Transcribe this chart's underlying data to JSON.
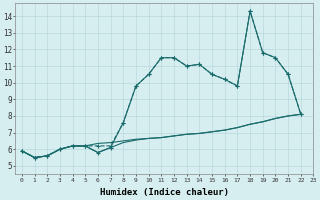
{
  "xlabel": "Humidex (Indice chaleur)",
  "xlim": [
    -0.5,
    23
  ],
  "ylim": [
    4.5,
    14.8
  ],
  "yticks": [
    5,
    6,
    7,
    8,
    9,
    10,
    11,
    12,
    13,
    14
  ],
  "xticks": [
    0,
    1,
    2,
    3,
    4,
    5,
    6,
    7,
    8,
    9,
    10,
    11,
    12,
    13,
    14,
    15,
    16,
    17,
    18,
    19,
    20,
    21,
    22,
    23
  ],
  "background_color": "#d6eef0",
  "grid_color": "#b8d8dc",
  "line_color": "#1a6b6b",
  "line1_dashed": {
    "x": [
      0,
      1,
      2,
      3,
      4,
      5,
      6,
      7,
      8,
      9,
      10,
      11,
      12,
      13,
      14,
      15,
      16,
      17,
      18,
      19,
      20,
      21,
      22
    ],
    "y": [
      5.9,
      5.5,
      5.6,
      6.0,
      6.2,
      6.2,
      6.2,
      6.2,
      7.6,
      9.8,
      10.5,
      11.5,
      11.5,
      11.0,
      11.1,
      10.5,
      10.2,
      9.8,
      14.3,
      11.8,
      11.5,
      10.5,
      8.1
    ]
  },
  "line2_solid_markers": {
    "x": [
      0,
      1,
      2,
      3,
      4,
      5,
      6,
      7,
      8,
      9,
      10,
      11,
      12,
      13,
      14,
      15,
      16,
      17,
      18,
      19,
      20,
      21,
      22
    ],
    "y": [
      5.9,
      5.5,
      5.6,
      6.0,
      6.2,
      6.2,
      5.8,
      6.1,
      7.6,
      9.8,
      10.5,
      11.5,
      11.5,
      11.0,
      11.1,
      10.5,
      10.2,
      9.8,
      14.3,
      11.8,
      11.5,
      10.5,
      8.1
    ]
  },
  "line3_diagonal": {
    "x": [
      0,
      1,
      2,
      3,
      4,
      5,
      6,
      7,
      8,
      9,
      10,
      11,
      12,
      13,
      14,
      15,
      16,
      17,
      18,
      19,
      20,
      21,
      22
    ],
    "y": [
      5.9,
      5.5,
      5.6,
      6.0,
      6.2,
      6.2,
      6.35,
      6.4,
      6.5,
      6.6,
      6.65,
      6.7,
      6.8,
      6.9,
      6.95,
      7.05,
      7.15,
      7.3,
      7.5,
      7.65,
      7.85,
      8.0,
      8.1
    ]
  },
  "line4_diagonal2": {
    "x": [
      0,
      1,
      2,
      3,
      4,
      5,
      6,
      7,
      8,
      9,
      10,
      11,
      12,
      13,
      14,
      15,
      16,
      17,
      18,
      19,
      20,
      21,
      22
    ],
    "y": [
      5.9,
      5.5,
      5.6,
      6.0,
      6.2,
      6.2,
      5.8,
      6.1,
      6.4,
      6.55,
      6.65,
      6.7,
      6.8,
      6.9,
      6.95,
      7.05,
      7.15,
      7.3,
      7.5,
      7.65,
      7.85,
      8.0,
      8.1
    ]
  }
}
